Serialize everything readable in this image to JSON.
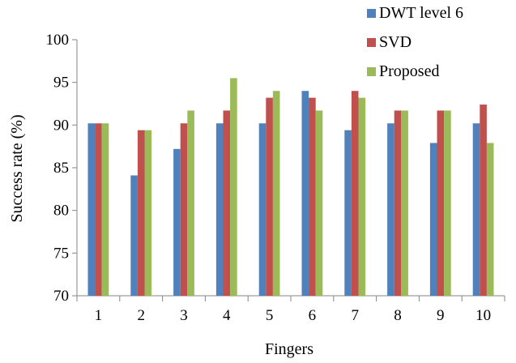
{
  "chart_data": {
    "type": "bar",
    "xlabel": "Fingers",
    "ylabel": "Success rate (%)",
    "categories": [
      "1",
      "2",
      "3",
      "4",
      "5",
      "6",
      "7",
      "8",
      "9",
      "10"
    ],
    "ylim": [
      70,
      100
    ],
    "yticks": [
      70,
      75,
      80,
      85,
      90,
      95,
      100
    ],
    "grid": false,
    "legend_position": "top-right",
    "series": [
      {
        "name": "DWT level 6",
        "color": "#4F81BD",
        "values": [
          90.2,
          84.1,
          87.2,
          90.2,
          90.2,
          94.0,
          89.4,
          90.2,
          87.9,
          90.2
        ]
      },
      {
        "name": "SVD",
        "color": "#C0504D",
        "values": [
          90.2,
          89.4,
          90.2,
          91.7,
          93.2,
          93.2,
          94.0,
          91.7,
          91.7,
          92.4
        ]
      },
      {
        "name": "Proposed",
        "color": "#9BBB59",
        "values": [
          90.2,
          89.4,
          91.7,
          95.5,
          94.0,
          91.7,
          93.2,
          91.7,
          91.7,
          87.9
        ]
      }
    ]
  }
}
